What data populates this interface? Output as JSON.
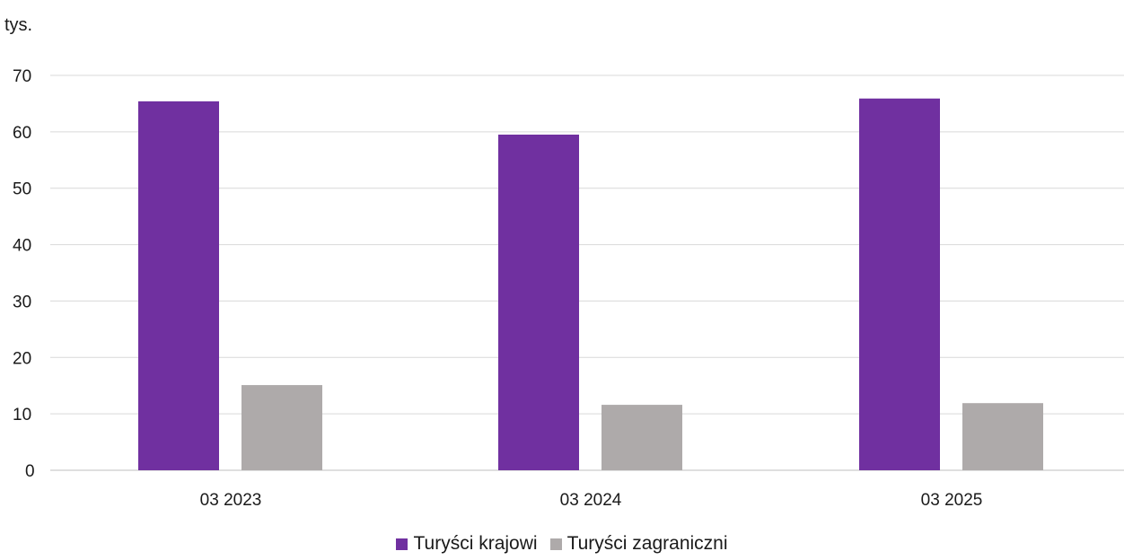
{
  "chart_data": {
    "type": "bar",
    "unit_label": "tys.",
    "categories": [
      "03 2023",
      "03 2024",
      "03 2025"
    ],
    "series": [
      {
        "name": "Turyści krajowi",
        "color": "#7030a0",
        "values": [
          65.4,
          59.5,
          65.9
        ]
      },
      {
        "name": "Turyści zagraniczni",
        "color": "#aeaaaa",
        "values": [
          15.1,
          11.6,
          11.9
        ]
      }
    ],
    "ylim": [
      0,
      70
    ],
    "yticks": [
      0,
      10,
      20,
      30,
      40,
      50,
      60,
      70
    ],
    "grid": true,
    "legend_position": "bottom"
  }
}
